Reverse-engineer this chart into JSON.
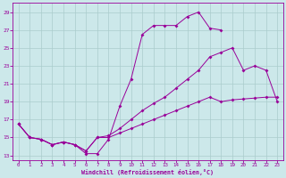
{
  "xlabel": "Windchill (Refroidissement éolien,°C)",
  "bg_color": "#cce8ea",
  "grid_color": "#aacccc",
  "line_color": "#990099",
  "xlim": [
    -0.5,
    23.5
  ],
  "ylim": [
    12.5,
    30
  ],
  "yticks": [
    13,
    15,
    17,
    19,
    21,
    23,
    25,
    27,
    29
  ],
  "xticks": [
    0,
    1,
    2,
    3,
    4,
    5,
    6,
    7,
    8,
    9,
    10,
    11,
    12,
    13,
    14,
    15,
    16,
    17,
    18,
    19,
    20,
    21,
    22,
    23
  ],
  "line1_x": [
    0,
    1,
    2,
    3,
    4,
    5,
    6,
    7,
    8,
    9,
    10,
    11,
    12,
    13,
    14,
    15,
    16,
    17,
    18
  ],
  "line1_y": [
    16.5,
    15.0,
    14.8,
    14.2,
    14.5,
    14.2,
    13.2,
    13.2,
    14.8,
    18.5,
    21.5,
    26.5,
    27.5,
    27.5,
    27.5,
    28.5,
    29.0,
    27.2,
    27.0
  ],
  "line2_x": [
    0,
    1,
    2,
    3,
    4,
    5,
    6,
    7,
    8,
    9,
    10,
    11,
    12,
    13,
    14,
    15,
    16,
    17,
    18,
    19,
    20,
    21,
    22,
    23
  ],
  "line2_y": [
    16.5,
    15.0,
    14.8,
    14.2,
    14.5,
    14.2,
    13.5,
    15.0,
    15.2,
    16.0,
    17.0,
    18.0,
    18.8,
    19.5,
    20.5,
    21.5,
    22.5,
    24.0,
    24.5,
    25.0,
    22.5,
    23.0,
    22.5,
    19.0
  ],
  "line3_x": [
    0,
    1,
    2,
    3,
    4,
    5,
    6,
    7,
    8,
    9,
    10,
    11,
    12,
    13,
    14,
    15,
    16,
    17,
    18,
    19,
    20,
    21,
    22,
    23
  ],
  "line3_y": [
    16.5,
    15.0,
    14.8,
    14.2,
    14.5,
    14.2,
    13.5,
    15.0,
    15.0,
    15.5,
    16.0,
    16.5,
    17.0,
    17.5,
    18.0,
    18.5,
    19.0,
    19.5,
    19.0,
    19.2,
    19.3,
    19.4,
    19.5,
    19.5
  ]
}
